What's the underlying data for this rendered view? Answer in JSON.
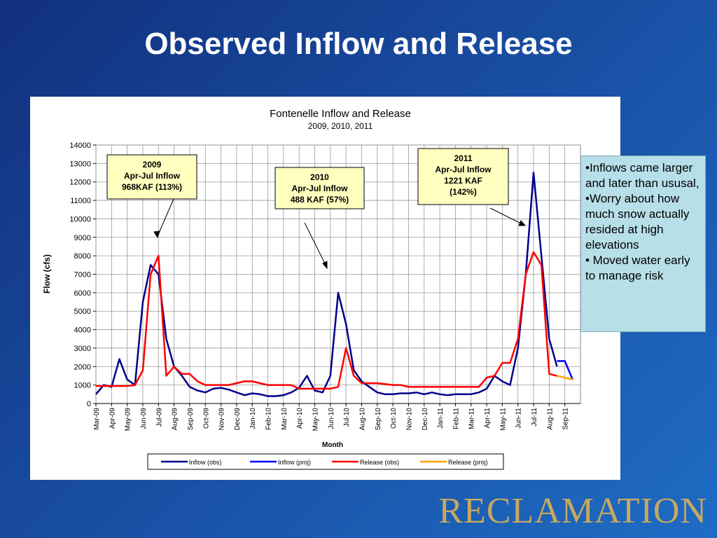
{
  "slide_title": "Observed Inflow and Release",
  "notes": [
    "•Inflows came larger and later than ususal,",
    "•Worry about how much snow actually resided at high elevations",
    "• Moved water early to manage risk"
  ],
  "logo": "RECLAMATION",
  "chart_data": {
    "type": "line",
    "title": "Fontenelle Inflow and Release",
    "subtitle": "2009, 2010, 2011",
    "y_label": "Flow (cfs)",
    "x_label": "Month",
    "categories": [
      "Mar-09",
      null,
      "Apr-09",
      null,
      "May-09",
      null,
      "Jun-09",
      null,
      "Jul-09",
      null,
      "Aug-09",
      null,
      "Sep-09",
      null,
      "Oct-09",
      null,
      "Nov-09",
      null,
      "Dec-09",
      null,
      "Jan-10",
      null,
      "Feb-10",
      null,
      "Mar-10",
      null,
      "Apr-10",
      null,
      "May-10",
      null,
      "Jun-10",
      null,
      "Jul-10",
      null,
      "Aug-10",
      null,
      "Sep-10",
      null,
      "Oct-10",
      null,
      "Nov-10",
      null,
      "Dec-10",
      null,
      "Jan-11",
      null,
      "Feb-11",
      null,
      "Mar-11",
      null,
      "Apr-11",
      null,
      "May-11",
      null,
      "Jun-11",
      null,
      "Jul-11",
      null,
      "Aug-11",
      null,
      "Sep-11",
      null
    ],
    "series": [
      {
        "name": "Inflow (obs)",
        "color": "#00008b",
        "values": [
          500,
          1000,
          900,
          2400,
          1300,
          1000,
          5500,
          7500,
          7000,
          3500,
          2000,
          1500,
          900,
          700,
          600,
          800,
          850,
          750,
          600,
          450,
          550,
          500,
          400,
          400,
          450,
          600,
          850,
          1500,
          700,
          600,
          1500,
          6000,
          4300,
          1800,
          1200,
          900,
          600,
          500,
          500,
          550,
          550,
          600,
          500,
          600,
          500,
          450,
          500,
          500,
          500,
          600,
          800,
          1500,
          1200,
          1000,
          3000,
          7000,
          12500,
          8000,
          3500,
          2000,
          null,
          null
        ]
      },
      {
        "name": "Inflow (proj)",
        "color": "#0000ff",
        "values": [
          null,
          null,
          null,
          null,
          null,
          null,
          null,
          null,
          null,
          null,
          null,
          null,
          null,
          null,
          null,
          null,
          null,
          null,
          null,
          null,
          null,
          null,
          null,
          null,
          null,
          null,
          null,
          null,
          null,
          null,
          null,
          null,
          null,
          null,
          null,
          null,
          null,
          null,
          null,
          null,
          null,
          null,
          null,
          null,
          null,
          null,
          null,
          null,
          null,
          null,
          null,
          null,
          null,
          null,
          null,
          null,
          null,
          null,
          null,
          2300,
          2300,
          1300
        ]
      },
      {
        "name": "Release (obs)",
        "color": "#ff0000",
        "values": [
          950,
          950,
          950,
          950,
          950,
          1000,
          1800,
          7000,
          8000,
          1500,
          2000,
          1600,
          1600,
          1200,
          1000,
          1000,
          1000,
          1000,
          1100,
          1200,
          1200,
          1100,
          1000,
          1000,
          1000,
          1000,
          800,
          800,
          800,
          800,
          800,
          900,
          3000,
          1500,
          1100,
          1100,
          1100,
          1050,
          1000,
          1000,
          900,
          900,
          900,
          900,
          900,
          900,
          900,
          900,
          900,
          900,
          1400,
          1500,
          2200,
          2200,
          3500,
          7000,
          8200,
          7500,
          1600,
          1500,
          null,
          null
        ]
      },
      {
        "name": "Release (proj)",
        "color": "#ffa500",
        "values": [
          null,
          null,
          null,
          null,
          null,
          null,
          null,
          null,
          null,
          null,
          null,
          null,
          null,
          null,
          null,
          null,
          null,
          null,
          null,
          null,
          null,
          null,
          null,
          null,
          null,
          null,
          null,
          null,
          null,
          null,
          null,
          null,
          null,
          null,
          null,
          null,
          null,
          null,
          null,
          null,
          null,
          null,
          null,
          null,
          null,
          null,
          null,
          null,
          null,
          null,
          null,
          null,
          null,
          null,
          null,
          null,
          null,
          null,
          null,
          1500,
          1400,
          1300
        ]
      }
    ],
    "ylim": [
      0,
      14000
    ],
    "yticks": [
      0,
      1000,
      2000,
      3000,
      4000,
      5000,
      6000,
      7000,
      8000,
      9000,
      10000,
      11000,
      12000,
      13000,
      14000
    ],
    "grid": true,
    "legend": "bottom",
    "annotations": [
      {
        "lines": [
          "2009",
          "Apr-Jul Inflow",
          "968KAF (113%)"
        ]
      },
      {
        "lines": [
          "2010",
          "Apr-Jul Inflow",
          "488 KAF (57%)"
        ]
      },
      {
        "lines": [
          "2011",
          "Apr-Jul Inflow",
          "1221 KAF",
          "(142%)"
        ]
      }
    ]
  }
}
